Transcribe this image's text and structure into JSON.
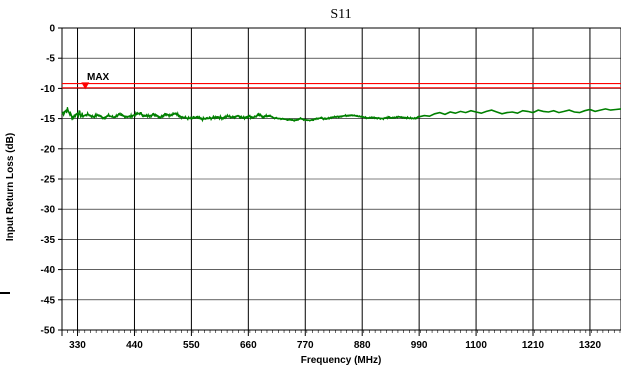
{
  "chart_data": {
    "type": "line",
    "title": "S11",
    "xlabel": "Frequency (MHz)",
    "ylabel": "Input Return Loss (dB)",
    "xlim": [
      300,
      1380
    ],
    "ylim": [
      -50,
      0
    ],
    "x_ticks": [
      330,
      440,
      550,
      660,
      770,
      880,
      990,
      1100,
      1210,
      1320
    ],
    "y_ticks": [
      0,
      -5,
      -10,
      -15,
      -20,
      -25,
      -30,
      -35,
      -40,
      -45,
      -50
    ],
    "grid": true,
    "colors": {
      "trace": "#008000",
      "limit": "#ff0000",
      "grid": "#000000"
    },
    "limit_line": {
      "label": "MAX",
      "y": -9.5,
      "band": [
        -9.2,
        -9.9
      ],
      "marker_x": 345
    },
    "series": [
      {
        "values_x": [
          300,
          310,
          320,
          330,
          340,
          350,
          360,
          370,
          380,
          390,
          400,
          410,
          420,
          430,
          440,
          450,
          460,
          470,
          480,
          490,
          500,
          510,
          520,
          530,
          540,
          550,
          560,
          570,
          580,
          590,
          600,
          610,
          620,
          630,
          640,
          650,
          660,
          670,
          680,
          690,
          700,
          710,
          720,
          730,
          740,
          750,
          760,
          770,
          780,
          790,
          800,
          810,
          820,
          830,
          840,
          850,
          860,
          870,
          880,
          890,
          900,
          910,
          920,
          930,
          940,
          950,
          960,
          970,
          980,
          990,
          1000,
          1010,
          1020,
          1030,
          1040,
          1050,
          1060,
          1070,
          1080,
          1090,
          1100,
          1110,
          1120,
          1130,
          1140,
          1150,
          1160,
          1170,
          1180,
          1190,
          1200,
          1210,
          1220,
          1230,
          1240,
          1250,
          1260,
          1270,
          1280,
          1290,
          1300,
          1310,
          1320,
          1330,
          1340,
          1350,
          1360,
          1370,
          1380
        ],
        "values_y": [
          -14.2,
          -13.5,
          -14.8,
          -14.1,
          -14.6,
          -14.3,
          -14.7,
          -14.4,
          -14.9,
          -14.5,
          -14.8,
          -14.3,
          -14.6,
          -14.7,
          -14.4,
          -14.1,
          -14.6,
          -14.5,
          -14.3,
          -14.8,
          -14.2,
          -14.5,
          -14.1,
          -14.7,
          -14.9,
          -15.0,
          -14.8,
          -15.1,
          -15.0,
          -14.9,
          -14.7,
          -14.9,
          -14.6,
          -14.8,
          -14.5,
          -14.9,
          -14.6,
          -14.8,
          -14.4,
          -14.7,
          -14.5,
          -14.9,
          -15.0,
          -15.1,
          -15.2,
          -15.3,
          -15.0,
          -15.2,
          -15.3,
          -15.0,
          -14.9,
          -15.1,
          -14.8,
          -14.7,
          -14.6,
          -14.5,
          -14.4,
          -14.6,
          -14.7,
          -14.9,
          -14.8,
          -14.9,
          -15.0,
          -14.8,
          -14.9,
          -14.7,
          -14.8,
          -14.9,
          -15.0,
          -14.7,
          -14.5,
          -14.6,
          -14.2,
          -14.0,
          -14.3,
          -13.9,
          -14.1,
          -13.8,
          -14.0,
          -13.7,
          -13.9,
          -14.1,
          -13.8,
          -13.6,
          -13.9,
          -14.2,
          -14.0,
          -13.9,
          -14.1,
          -13.7,
          -13.8,
          -14.0,
          -13.6,
          -13.8,
          -13.9,
          -13.7,
          -14.0,
          -13.8,
          -13.6,
          -13.9,
          -14.0,
          -13.7,
          -13.5,
          -13.8,
          -13.6,
          -13.4,
          -13.6,
          -13.5,
          -13.4
        ]
      }
    ]
  }
}
